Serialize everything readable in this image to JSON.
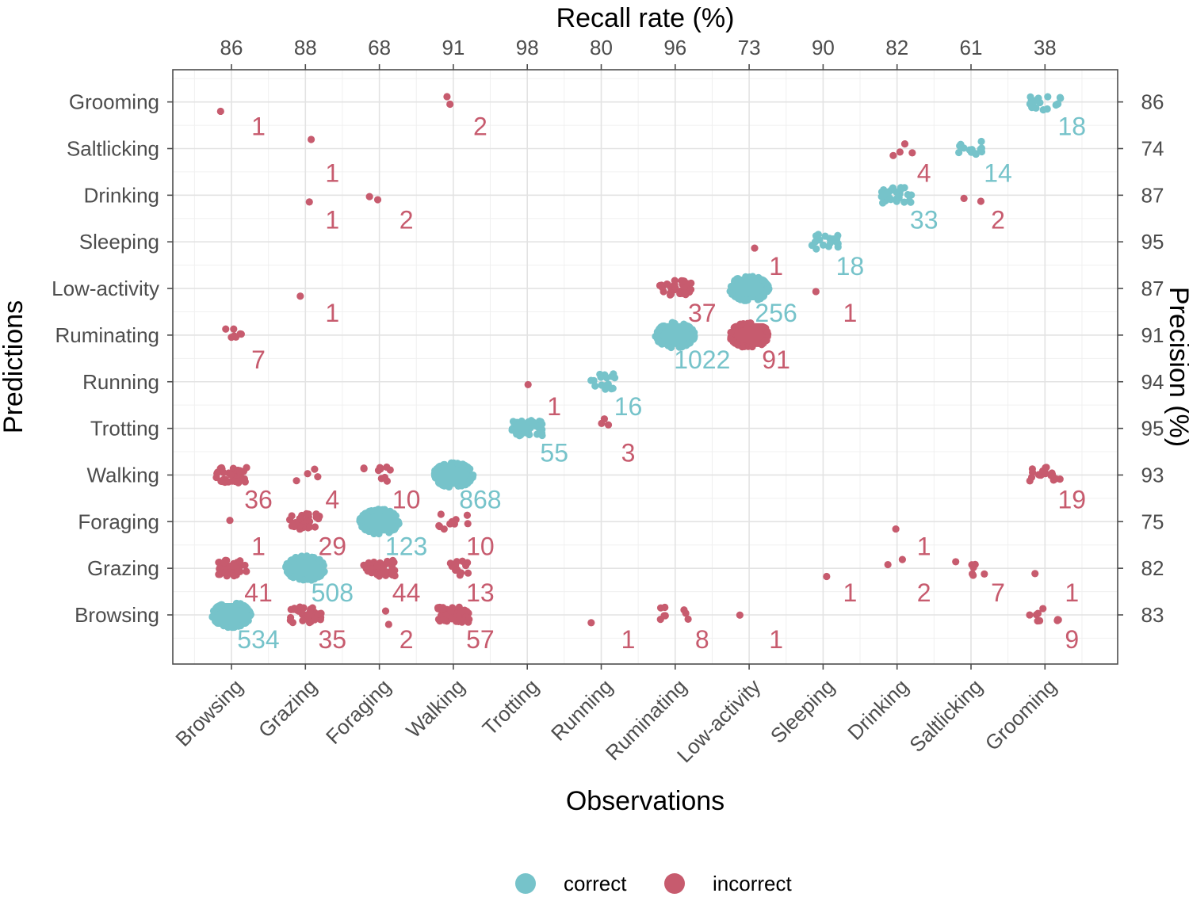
{
  "colors": {
    "correct": "#76c3ca",
    "incorrect": "#c75b6e",
    "grid_major": "#e3e3e3",
    "grid_minor": "#f0f0f0",
    "frame": "#4d4d4d"
  },
  "chart_data": {
    "type": "scatter",
    "title": "",
    "xlabel": "Observations",
    "ylabel": "Predictions",
    "top_axis_title": "Recall rate (%)",
    "right_axis_title": "Precision (%)",
    "categories": [
      "Browsing",
      "Grazing",
      "Foraging",
      "Walking",
      "Trotting",
      "Running",
      "Ruminating",
      "Low-activity",
      "Sleeping",
      "Drinking",
      "Saltlicking",
      "Grooming"
    ],
    "recall_rate": [
      86,
      88,
      68,
      91,
      98,
      80,
      96,
      73,
      90,
      82,
      61,
      38
    ],
    "precision": [
      83,
      82,
      75,
      93,
      95,
      94,
      91,
      87,
      95,
      87,
      74,
      86
    ],
    "legend": [
      {
        "key": "correct",
        "label": "correct"
      },
      {
        "key": "incorrect",
        "label": "incorrect"
      }
    ],
    "cells": [
      {
        "observation": "Browsing",
        "prediction": "Browsing",
        "count": 534,
        "type": "correct"
      },
      {
        "observation": "Browsing",
        "prediction": "Grazing",
        "count": 41,
        "type": "incorrect"
      },
      {
        "observation": "Browsing",
        "prediction": "Foraging",
        "count": 1,
        "type": "incorrect"
      },
      {
        "observation": "Browsing",
        "prediction": "Walking",
        "count": 36,
        "type": "incorrect"
      },
      {
        "observation": "Browsing",
        "prediction": "Ruminating",
        "count": 7,
        "type": "incorrect"
      },
      {
        "observation": "Browsing",
        "prediction": "Grooming",
        "count": 1,
        "type": "incorrect"
      },
      {
        "observation": "Grazing",
        "prediction": "Browsing",
        "count": 35,
        "type": "incorrect"
      },
      {
        "observation": "Grazing",
        "prediction": "Grazing",
        "count": 508,
        "type": "correct"
      },
      {
        "observation": "Grazing",
        "prediction": "Foraging",
        "count": 29,
        "type": "incorrect"
      },
      {
        "observation": "Grazing",
        "prediction": "Walking",
        "count": 4,
        "type": "incorrect"
      },
      {
        "observation": "Grazing",
        "prediction": "Low-activity",
        "count": 1,
        "type": "incorrect"
      },
      {
        "observation": "Grazing",
        "prediction": "Drinking",
        "count": 1,
        "type": "incorrect"
      },
      {
        "observation": "Grazing",
        "prediction": "Saltlicking",
        "count": 1,
        "type": "incorrect"
      },
      {
        "observation": "Foraging",
        "prediction": "Browsing",
        "count": 2,
        "type": "incorrect"
      },
      {
        "observation": "Foraging",
        "prediction": "Grazing",
        "count": 44,
        "type": "incorrect"
      },
      {
        "observation": "Foraging",
        "prediction": "Foraging",
        "count": 123,
        "type": "correct"
      },
      {
        "observation": "Foraging",
        "prediction": "Walking",
        "count": 10,
        "type": "incorrect"
      },
      {
        "observation": "Foraging",
        "prediction": "Drinking",
        "count": 2,
        "type": "incorrect"
      },
      {
        "observation": "Walking",
        "prediction": "Browsing",
        "count": 57,
        "type": "incorrect"
      },
      {
        "observation": "Walking",
        "prediction": "Grazing",
        "count": 13,
        "type": "incorrect"
      },
      {
        "observation": "Walking",
        "prediction": "Foraging",
        "count": 10,
        "type": "incorrect"
      },
      {
        "observation": "Walking",
        "prediction": "Walking",
        "count": 868,
        "type": "correct"
      },
      {
        "observation": "Walking",
        "prediction": "Grooming",
        "count": 2,
        "type": "incorrect"
      },
      {
        "observation": "Trotting",
        "prediction": "Trotting",
        "count": 55,
        "type": "correct"
      },
      {
        "observation": "Trotting",
        "prediction": "Running",
        "count": 1,
        "type": "incorrect"
      },
      {
        "observation": "Running",
        "prediction": "Browsing",
        "count": 1,
        "type": "incorrect"
      },
      {
        "observation": "Running",
        "prediction": "Trotting",
        "count": 3,
        "type": "incorrect"
      },
      {
        "observation": "Running",
        "prediction": "Running",
        "count": 16,
        "type": "correct"
      },
      {
        "observation": "Ruminating",
        "prediction": "Browsing",
        "count": 8,
        "type": "incorrect"
      },
      {
        "observation": "Ruminating",
        "prediction": "Ruminating",
        "count": 1022,
        "type": "correct"
      },
      {
        "observation": "Ruminating",
        "prediction": "Low-activity",
        "count": 37,
        "type": "incorrect"
      },
      {
        "observation": "Low-activity",
        "prediction": "Browsing",
        "count": 1,
        "type": "incorrect"
      },
      {
        "observation": "Low-activity",
        "prediction": "Ruminating",
        "count": 91,
        "type": "incorrect"
      },
      {
        "observation": "Low-activity",
        "prediction": "Low-activity",
        "count": 256,
        "type": "correct"
      },
      {
        "observation": "Low-activity",
        "prediction": "Sleeping",
        "count": 1,
        "type": "incorrect"
      },
      {
        "observation": "Sleeping",
        "prediction": "Grazing",
        "count": 1,
        "type": "incorrect"
      },
      {
        "observation": "Sleeping",
        "prediction": "Low-activity",
        "count": 1,
        "type": "incorrect"
      },
      {
        "observation": "Sleeping",
        "prediction": "Sleeping",
        "count": 18,
        "type": "correct"
      },
      {
        "observation": "Drinking",
        "prediction": "Grazing",
        "count": 2,
        "type": "incorrect"
      },
      {
        "observation": "Drinking",
        "prediction": "Foraging",
        "count": 1,
        "type": "incorrect"
      },
      {
        "observation": "Drinking",
        "prediction": "Drinking",
        "count": 33,
        "type": "correct"
      },
      {
        "observation": "Drinking",
        "prediction": "Saltlicking",
        "count": 4,
        "type": "incorrect"
      },
      {
        "observation": "Saltlicking",
        "prediction": "Grazing",
        "count": 7,
        "type": "incorrect"
      },
      {
        "observation": "Saltlicking",
        "prediction": "Drinking",
        "count": 2,
        "type": "incorrect"
      },
      {
        "observation": "Saltlicking",
        "prediction": "Saltlicking",
        "count": 14,
        "type": "correct"
      },
      {
        "observation": "Grooming",
        "prediction": "Browsing",
        "count": 9,
        "type": "incorrect"
      },
      {
        "observation": "Grooming",
        "prediction": "Grazing",
        "count": 1,
        "type": "incorrect"
      },
      {
        "observation": "Grooming",
        "prediction": "Walking",
        "count": 19,
        "type": "incorrect"
      },
      {
        "observation": "Grooming",
        "prediction": "Grooming",
        "count": 18,
        "type": "correct"
      }
    ]
  }
}
